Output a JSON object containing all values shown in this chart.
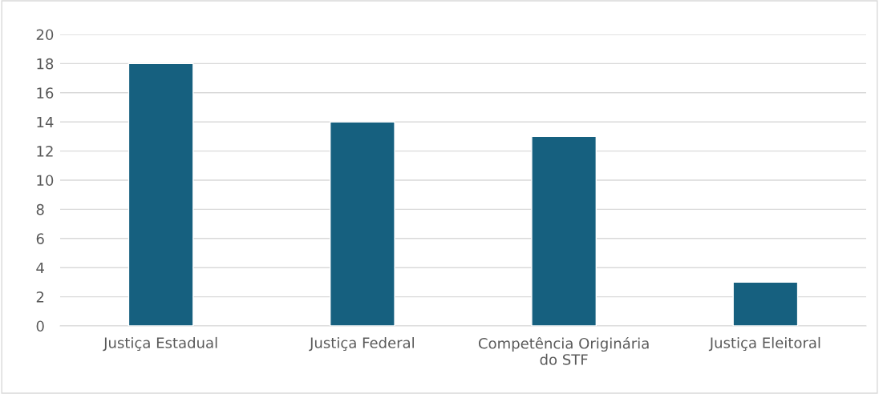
{
  "chart_data": {
    "type": "bar",
    "categories": [
      "Justiça Estadual",
      "Justiça Federal",
      "Competência Originária do STF",
      "Justiça Eleitoral"
    ],
    "values": [
      18,
      14,
      13,
      3
    ],
    "color": "#16607f",
    "ylim": [
      0,
      20
    ],
    "yticks": [
      0,
      2,
      4,
      6,
      8,
      10,
      12,
      14,
      16,
      18,
      20
    ],
    "grid": "y"
  }
}
